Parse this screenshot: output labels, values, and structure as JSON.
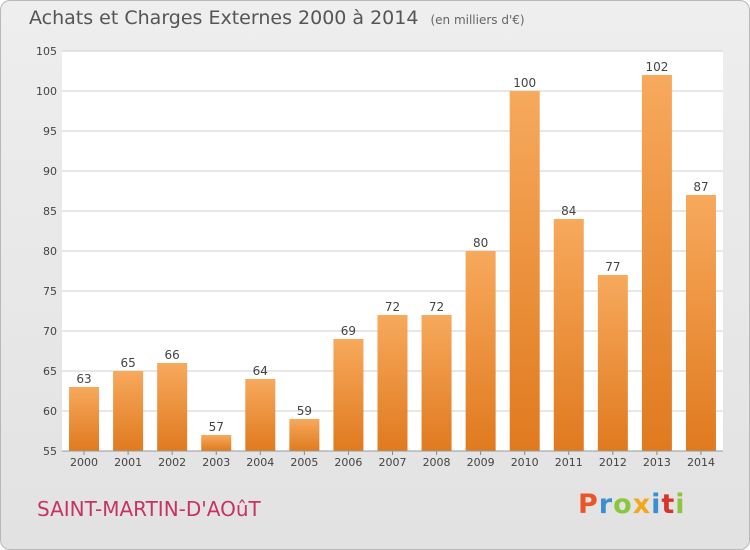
{
  "header": {
    "title": "Achats et Charges Externes 2000 à 2014",
    "subtitle": "(en milliers d'€)"
  },
  "footer": {
    "town": "SAINT-MARTIN-D'AOûT",
    "logo": "Proxiti",
    "logo_colors": [
      "#e8562a",
      "#3b8ed0",
      "#8cc63e",
      "#f2a81d",
      "#3b8ed0",
      "#d9342b",
      "#8cc63e"
    ]
  },
  "colors": {
    "bar_light": "#f7a95c",
    "bar_dark": "#e07a1f",
    "grid": "#cfcfcf",
    "plot_bg": "#ffffff",
    "town": "#c83264"
  },
  "chart_data": {
    "type": "bar",
    "title": "Achats et Charges Externes 2000 à 2014",
    "subtitle": "(en milliers d'€)",
    "categories": [
      "2000",
      "2001",
      "2002",
      "2003",
      "2004",
      "2005",
      "2006",
      "2007",
      "2008",
      "2009",
      "2010",
      "2011",
      "2012",
      "2013",
      "2014"
    ],
    "values": [
      63,
      65,
      66,
      57,
      64,
      59,
      69,
      72,
      72,
      80,
      100,
      84,
      77,
      102,
      87
    ],
    "ylim": [
      55,
      105
    ],
    "yticks": [
      55,
      60,
      65,
      70,
      75,
      80,
      85,
      90,
      95,
      100,
      105
    ],
    "xlabel": "",
    "ylabel": "",
    "grid": true,
    "data_labels": true
  }
}
